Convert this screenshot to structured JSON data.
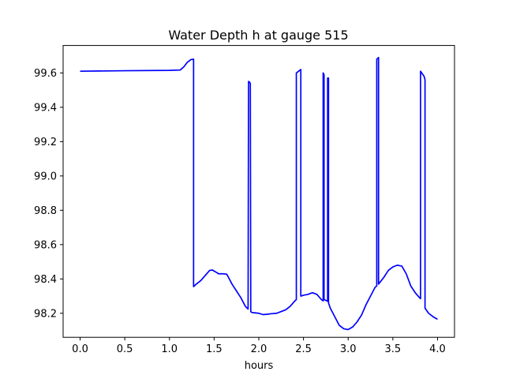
{
  "chart_data": {
    "type": "line",
    "title": "Water Depth h at gauge 515",
    "xlabel": "hours",
    "ylabel": "",
    "xlim": [
      -0.19,
      4.19
    ],
    "ylim": [
      98.06,
      99.76
    ],
    "xticks": [
      0.0,
      0.5,
      1.0,
      1.5,
      2.0,
      2.5,
      3.0,
      3.5,
      4.0
    ],
    "xtick_labels": [
      "0.0",
      "0.5",
      "1.0",
      "1.5",
      "2.0",
      "2.5",
      "3.0",
      "3.5",
      "4.0"
    ],
    "yticks": [
      98.2,
      98.4,
      98.6,
      98.8,
      99.0,
      99.2,
      99.4,
      99.6
    ],
    "ytick_labels": [
      "98.2",
      "98.4",
      "98.6",
      "98.8",
      "99.0",
      "99.2",
      "99.4",
      "99.6"
    ],
    "grid": false,
    "legend": "none",
    "series": [
      {
        "color": "#0000ff",
        "x": [
          0.0,
          0.5,
          1.0,
          1.12,
          1.16,
          1.2,
          1.24,
          1.27,
          1.27,
          1.3,
          1.35,
          1.4,
          1.45,
          1.48,
          1.52,
          1.55,
          1.6,
          1.64,
          1.66,
          1.7,
          1.75,
          1.8,
          1.85,
          1.88,
          1.885,
          1.89,
          1.905,
          1.91,
          1.92,
          1.95,
          2.0,
          2.05,
          2.1,
          2.15,
          2.2,
          2.25,
          2.3,
          2.35,
          2.4,
          2.42,
          2.42,
          2.47,
          2.47,
          2.5,
          2.55,
          2.6,
          2.65,
          2.7,
          2.72,
          2.72,
          2.73,
          2.73,
          2.77,
          2.77,
          2.78,
          2.78,
          2.8,
          2.85,
          2.9,
          2.95,
          3.0,
          3.05,
          3.1,
          3.15,
          3.2,
          3.25,
          3.3,
          3.32,
          3.32,
          3.34,
          3.34,
          3.4,
          3.45,
          3.5,
          3.55,
          3.6,
          3.65,
          3.7,
          3.75,
          3.8,
          3.81,
          3.81,
          3.85,
          3.86,
          3.86,
          3.9,
          3.95,
          4.0
        ],
        "y": [
          99.61,
          99.613,
          99.615,
          99.617,
          99.635,
          99.662,
          99.678,
          99.68,
          98.355,
          98.37,
          98.39,
          98.42,
          98.45,
          98.452,
          98.44,
          98.43,
          98.43,
          98.428,
          98.41,
          98.37,
          98.33,
          98.29,
          98.24,
          98.225,
          99.55,
          99.55,
          99.54,
          98.21,
          98.205,
          98.203,
          98.2,
          98.192,
          98.195,
          98.198,
          98.2,
          98.21,
          98.22,
          98.24,
          98.27,
          98.28,
          99.6,
          99.62,
          98.3,
          98.305,
          98.31,
          98.32,
          98.31,
          98.28,
          98.272,
          99.6,
          99.59,
          98.28,
          98.27,
          99.57,
          99.57,
          98.26,
          98.23,
          98.18,
          98.13,
          98.11,
          98.105,
          98.12,
          98.15,
          98.19,
          98.25,
          98.3,
          98.35,
          98.36,
          99.68,
          99.69,
          98.37,
          98.41,
          98.45,
          98.47,
          98.48,
          98.475,
          98.43,
          98.36,
          98.32,
          98.29,
          98.285,
          99.61,
          99.58,
          99.56,
          98.23,
          98.2,
          98.18,
          98.165
        ]
      }
    ]
  }
}
